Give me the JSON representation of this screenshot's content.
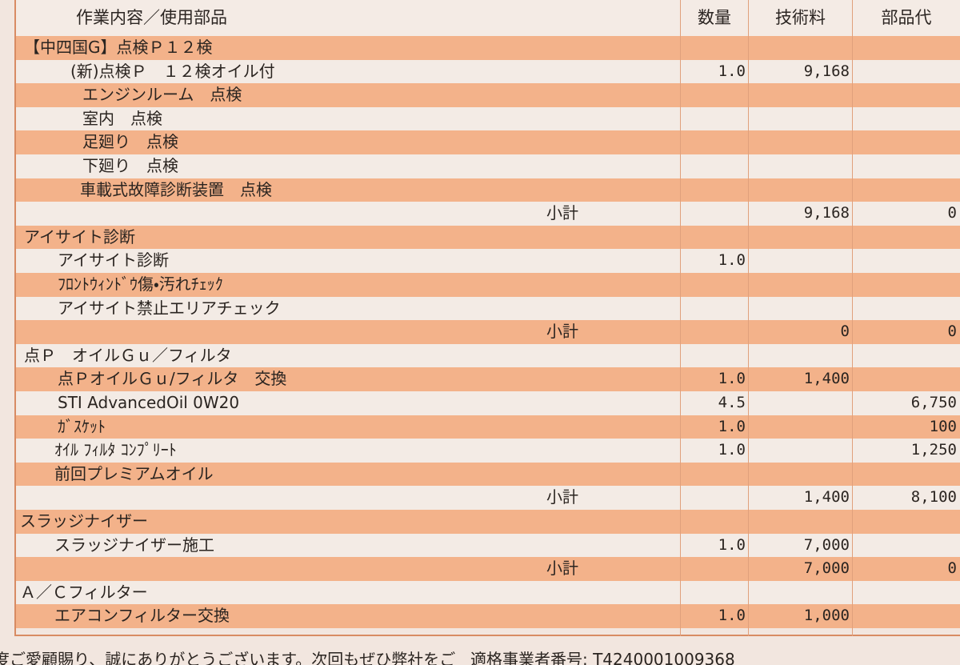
{
  "header": {
    "columns": [
      "作業内容／使用部品",
      "数量",
      "技術料",
      "部品代"
    ]
  },
  "rows": [
    {
      "item": "【中四国G】点検Ｐ１２検"
    },
    {
      "item": "(新)点検Ｐ　１２検オイル付",
      "qty": "1.0",
      "labor": "9,168"
    },
    {
      "item": "エンジンルーム　点検"
    },
    {
      "item": "室内　点検"
    },
    {
      "item": "足廻り　点検"
    },
    {
      "item": "下廻り　点検"
    },
    {
      "item": "車載式故障診断装置　点検"
    },
    {
      "item": "小計",
      "labor": "9,168",
      "parts": "0"
    },
    {
      "item": "アイサイト診断"
    },
    {
      "item": "アイサイト診断",
      "qty": "1.0"
    },
    {
      "item": "ﾌﾛﾝﾄｳｨﾝﾄﾞｳ傷・汚れﾁｪｯｸ"
    },
    {
      "item": "アイサイト禁止エリアチェック"
    },
    {
      "item": "小計",
      "labor": "0",
      "parts": "0"
    },
    {
      "item": "点Ｐ　オイルＧｕ／フィルタ"
    },
    {
      "item": "点ＰオイルＧｕ/フィルタ　交換",
      "qty": "1.0",
      "labor": "1,400"
    },
    {
      "item": "STI AdvancedOil 0W20",
      "qty": "4.5",
      "parts": "6,750"
    },
    {
      "item": "ｶﾞｽｹｯﾄ",
      "qty": "1.0",
      "parts": "100"
    },
    {
      "item": "ｵｲﾙ ﾌｨﾙﾀ ｺﾝﾌﾟﾘｰﾄ",
      "qty": "1.0",
      "parts": "1,250"
    },
    {
      "item": "前回プレミアムオイル"
    },
    {
      "item": "小計",
      "labor": "1,400",
      "parts": "8,100"
    },
    {
      "item": "スラッジナイザー"
    },
    {
      "item": "スラッジナイザー施工",
      "qty": "1.0",
      "labor": "7,000"
    },
    {
      "item": "小計",
      "labor": "7,000",
      "parts": "0"
    },
    {
      "item": "Ａ／Ｃフィルター"
    },
    {
      "item": "エアコンフィルター交換",
      "qty": "1.0",
      "labor": "1,000"
    }
  ],
  "footer": {
    "message": "度ご愛顧賜り、誠にありがとうございます。次回もぜひ弊社をご",
    "registration": "適格事業者番号: T4240001009368"
  }
}
